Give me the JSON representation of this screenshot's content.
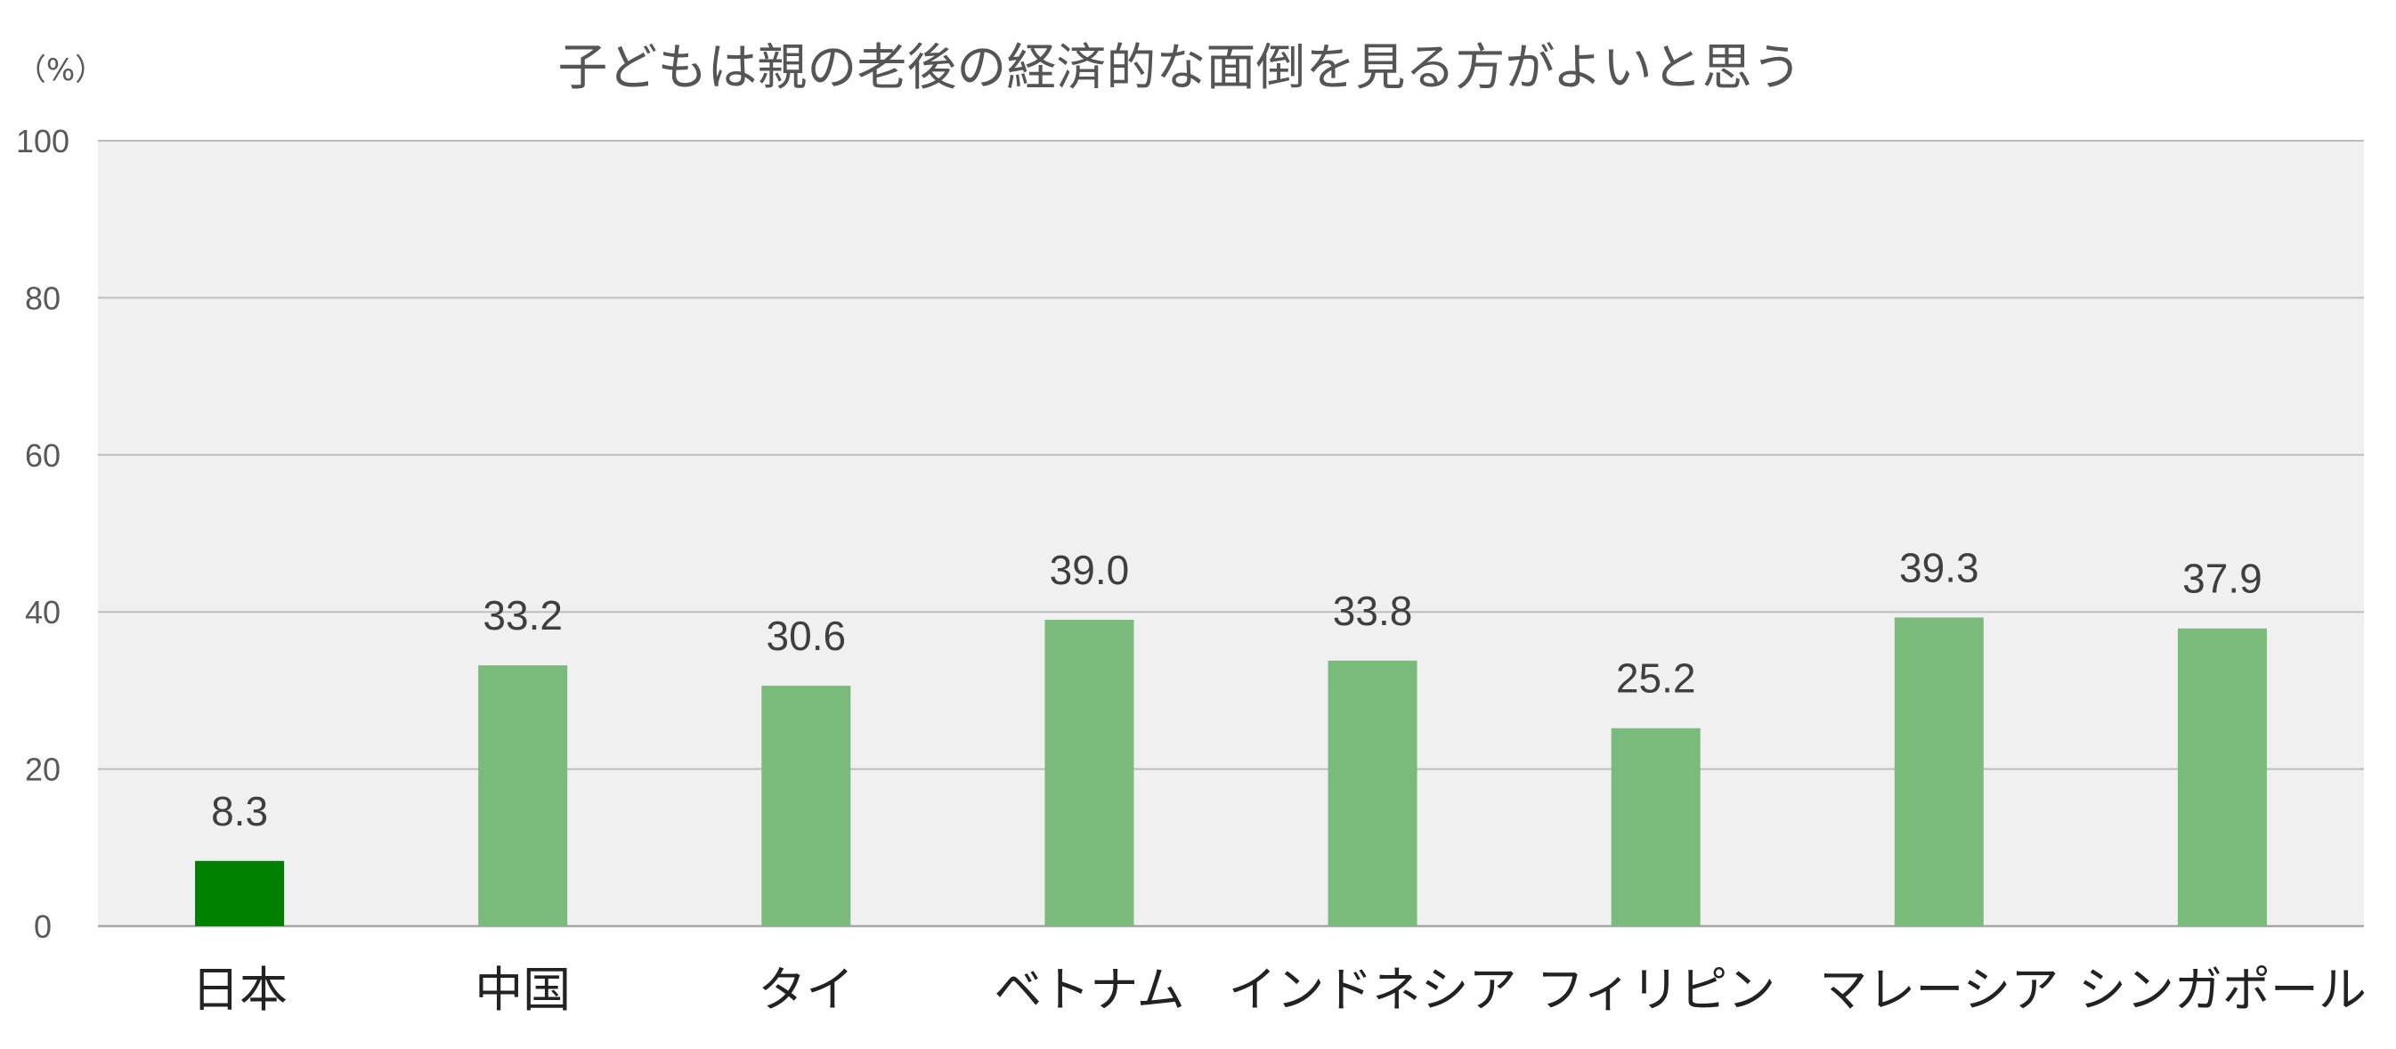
{
  "chart_data": {
    "type": "bar",
    "title": "子どもは親の老後の経済的な面倒を見る方がよいと思う",
    "unit_label": "（%）",
    "categories": [
      "日本",
      "中国",
      "タイ",
      "ベトナム",
      "インドネシア",
      "フィリピン",
      "マレーシア",
      "シンガポール"
    ],
    "values": [
      8.3,
      33.2,
      30.6,
      39.0,
      33.8,
      25.2,
      39.3,
      37.9
    ],
    "value_labels": [
      "8.3",
      "33.2",
      "30.6",
      "39.0",
      "33.8",
      "25.2",
      "39.3",
      "37.9"
    ],
    "ylim": [
      0,
      100
    ],
    "yticks": [
      0,
      20,
      40,
      60,
      80,
      100
    ],
    "grid": true,
    "legend": "none",
    "colors": {
      "highlight_bar": "#008000",
      "bar": "#7aba7a",
      "plot_background": "#f0f0f0",
      "gridline": "#bdbdbd"
    },
    "highlight_index": 0
  }
}
